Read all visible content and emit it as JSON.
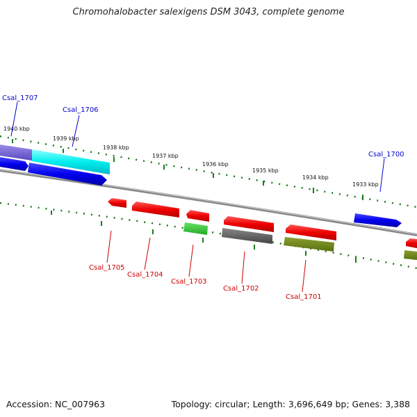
{
  "header": {
    "title": "Chromohalobacter salexigens DSM 3043, complete genome"
  },
  "footer": {
    "accession": "Accession: NC_007963",
    "summary": "Topology: circular; Length: 3,696,649 bp; Genes: 3,388"
  },
  "colors": {
    "plus_strand_label": "#0000cc",
    "minus_strand_label": "#cc0000",
    "tick": "#1a7a1a",
    "backbone": "#888888"
  },
  "scale_ticks": [
    "1940 kbp",
    "1939 kbp",
    "1938 kbp",
    "1937 kbp",
    "1936 kbp",
    "1935 kbp",
    "1934 kbp",
    "1933 kbp"
  ],
  "genes": [
    {
      "label": "Csal_1707",
      "strand": "plus"
    },
    {
      "label": "Csal_1706",
      "strand": "plus"
    },
    {
      "label": "Csal_1700",
      "strand": "plus"
    },
    {
      "label": "Csal_1705",
      "strand": "minus"
    },
    {
      "label": "Csal_1704",
      "strand": "minus"
    },
    {
      "label": "Csal_1703",
      "strand": "minus"
    },
    {
      "label": "Csal_1702",
      "strand": "minus"
    },
    {
      "label": "Csal_1701",
      "strand": "minus"
    }
  ]
}
